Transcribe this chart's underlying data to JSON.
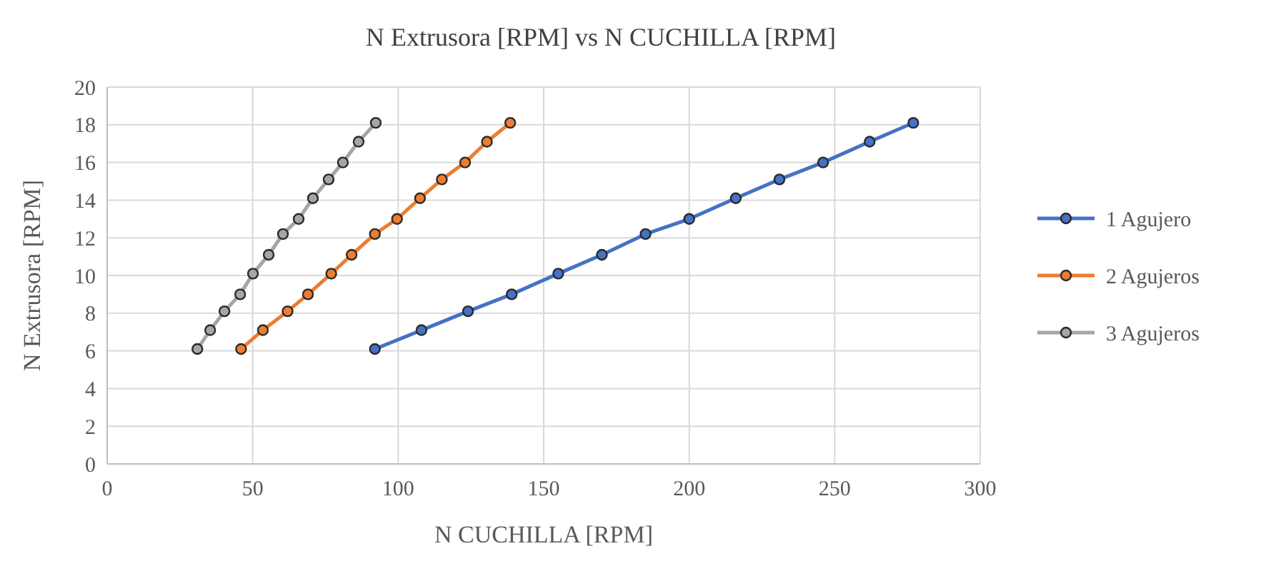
{
  "chart_data": {
    "type": "line",
    "title": "N Extrusora [RPM] vs N CUCHILLA [RPM]",
    "xlabel": "N CUCHILLA [RPM]",
    "ylabel": "N Extrusora [RPM]",
    "xlim": [
      0,
      300
    ],
    "xticks": [
      0,
      50,
      100,
      150,
      200,
      250,
      300
    ],
    "ylim": [
      0,
      20
    ],
    "yticks": [
      0,
      2,
      4,
      6,
      8,
      10,
      12,
      14,
      16,
      18,
      20
    ],
    "grid": true,
    "legend": "right",
    "marker": "circle",
    "line_style": "solid",
    "series": [
      {
        "name": "1 Agujero",
        "color": "#4472c4",
        "x": [
          92,
          108,
          124,
          139,
          155,
          170,
          185,
          200,
          216,
          231,
          246,
          262,
          277
        ],
        "values": [
          6.1,
          7.1,
          8.1,
          9.0,
          10.1,
          11.1,
          12.2,
          13.0,
          14.1,
          15.1,
          16.0,
          17.1,
          18.1
        ]
      },
      {
        "name": "2 Agujeros",
        "color": "#ed7d31",
        "x": [
          46,
          53.5,
          62,
          69,
          77,
          84,
          92,
          99.6,
          107.5,
          115,
          123,
          130.5,
          138.5
        ],
        "values": [
          6.1,
          7.1,
          8.1,
          9.0,
          10.1,
          11.1,
          12.2,
          13.0,
          14.1,
          15.1,
          16.0,
          17.1,
          18.1
        ]
      },
      {
        "name": "3 Agujeros",
        "color": "#a5a5a5",
        "x": [
          31,
          35.4,
          40.3,
          45.7,
          50.1,
          55.5,
          60.4,
          65.8,
          70.7,
          76.1,
          81,
          86.4,
          92.3
        ],
        "values": [
          6.1,
          7.1,
          8.1,
          9.0,
          10.1,
          11.1,
          12.2,
          13.0,
          14.1,
          15.1,
          16.0,
          17.1,
          18.1
        ]
      }
    ]
  }
}
